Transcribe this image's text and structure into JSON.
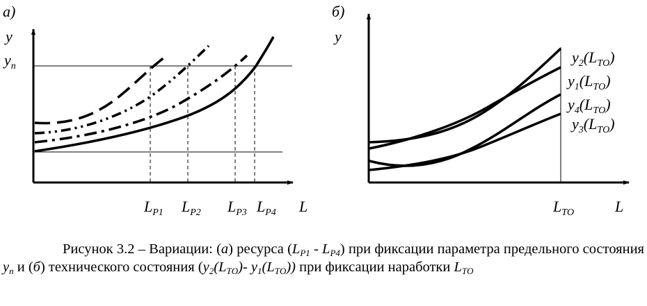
{
  "figure": {
    "panel_a": {
      "tag": "а)",
      "y_axis_label": "y",
      "threshold_label": {
        "main": "y",
        "sub": "п"
      },
      "x_axis_label": "L",
      "x_ticks": [
        {
          "main": "L",
          "sub": "Р1"
        },
        {
          "main": "L",
          "sub": "Р2"
        },
        {
          "main": "L",
          "sub": "Р3"
        },
        {
          "main": "L",
          "sub": "Р4"
        }
      ],
      "curve_styles": [
        "dashed",
        "dash-dot-dot",
        "dash-dot",
        "solid"
      ]
    },
    "panel_b": {
      "tag": "б)",
      "y_axis_label": "y",
      "x_axis_label": "L",
      "x_tick": {
        "main": "L",
        "sub": "ТО"
      },
      "curve_labels": [
        {
          "name": "y",
          "index": "2",
          "arg_main": "L",
          "arg_sub": "ТО"
        },
        {
          "name": "y",
          "index": "1",
          "arg_main": "L",
          "arg_sub": "ТО"
        },
        {
          "name": "y",
          "index": "4",
          "arg_main": "L",
          "arg_sub": "ТО"
        },
        {
          "name": "y",
          "index": "3",
          "arg_main": "L",
          "arg_sub": "ТО"
        }
      ]
    }
  },
  "caption": {
    "lead": "Рисунок 3.2 – Вариации: (",
    "a_letter": "а",
    "a_text": ") ресурса (",
    "lp1_main": "L",
    "lp1_sub": "Р1",
    "dash": " - ",
    "lp4_main": "L",
    "lp4_sub": "Р4",
    "close_paren": ")",
    "text_fix_param": " при фиксации параметра предельного состояния ",
    "yn_main": "y",
    "yn_sub": "п",
    "text_and": " и (",
    "b_letter": "б",
    "b_text": ") технического состояния (",
    "y2_main": "y",
    "y2_idx": "2",
    "y2_arg_open": "(",
    "y2_arg_main": "L",
    "y2_arg_sub": "ТО",
    "y2_arg_close": ")",
    "dash2": "- ",
    "y1_main": "y",
    "y1_idx": "1",
    "y1_arg_open": "(",
    "y1_arg_main": "L",
    "y1_arg_sub": "ТО",
    "y1_arg_close": "))",
    "text_fix_time": " при фиксации наработки ",
    "lto_main": "L",
    "lto_sub": "ТО"
  }
}
